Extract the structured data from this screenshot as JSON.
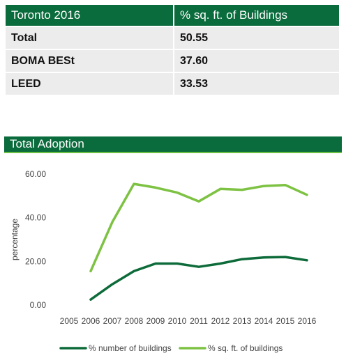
{
  "table": {
    "headers": [
      "Toronto 2016",
      "% sq. ft. of Buildings"
    ],
    "rows": [
      {
        "label": "Total",
        "value": "50.55"
      },
      {
        "label": "BOMA BESt",
        "value": "37.60"
      },
      {
        "label": "LEED",
        "value": "33.53"
      }
    ]
  },
  "colors": {
    "header_bg": "#0a6b3c",
    "row_bg": "#ececec",
    "accent": "#6cbf45",
    "series_dark": "#0d6b3a",
    "series_light": "#7dc242"
  },
  "chart_data": {
    "type": "line",
    "title": "Total Adoption",
    "xlabel": "",
    "ylabel": "percentage",
    "categories": [
      "2005",
      "2006",
      "2007",
      "2008",
      "2009",
      "2010",
      "2011",
      "2012",
      "2013",
      "2014",
      "2015",
      "2016"
    ],
    "ylim": [
      0,
      60
    ],
    "yticks": [
      "0.00",
      "20.00",
      "40.00",
      "60.00"
    ],
    "grid": false,
    "legend": "bottom",
    "series": [
      {
        "name": "% number of buildings",
        "color": "#0d6b3a",
        "values": [
          null,
          2.5,
          9.5,
          15.5,
          19,
          19,
          17.5,
          19,
          21,
          21.8,
          22,
          20.5
        ]
      },
      {
        "name": "% sq. ft. of buildings",
        "color": "#7dc242",
        "values": [
          null,
          15.5,
          38,
          55.5,
          53.8,
          51.5,
          47.5,
          53.2,
          52.8,
          54.5,
          55,
          50.5
        ]
      }
    ]
  }
}
